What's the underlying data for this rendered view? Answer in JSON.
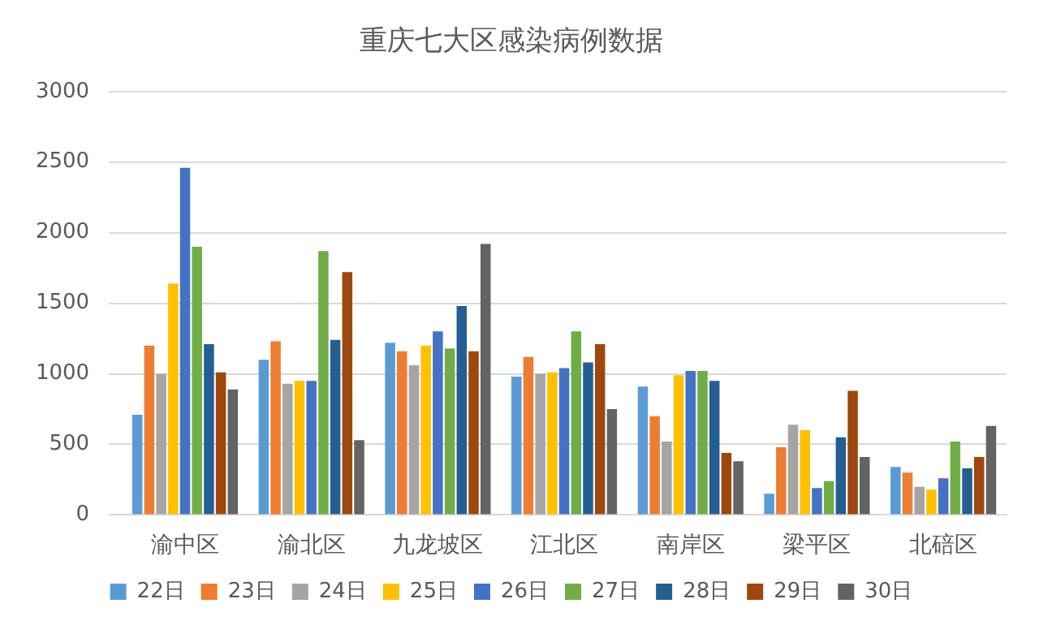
{
  "chart_data": {
    "type": "bar",
    "title": "重庆七大区感染病例数据",
    "categories": [
      "渝中区",
      "渝北区",
      "九龙坡区",
      "江北区",
      "南岸区",
      "梁平区",
      "北碚区"
    ],
    "series": [
      {
        "name": "22日",
        "color": "#5b9bd5",
        "values": [
          710,
          1100,
          1220,
          980,
          910,
          150,
          340
        ]
      },
      {
        "name": "23日",
        "color": "#ed7d31",
        "values": [
          1200,
          1230,
          1160,
          1120,
          700,
          480,
          300
        ]
      },
      {
        "name": "24日",
        "color": "#a5a5a5",
        "values": [
          1000,
          930,
          1060,
          1000,
          520,
          640,
          200
        ]
      },
      {
        "name": "25日",
        "color": "#ffc000",
        "values": [
          1640,
          950,
          1200,
          1010,
          990,
          600,
          180
        ]
      },
      {
        "name": "26日",
        "color": "#4472c4",
        "values": [
          2460,
          950,
          1300,
          1040,
          1020,
          190,
          260
        ]
      },
      {
        "name": "27日",
        "color": "#70ad47",
        "values": [
          1900,
          1870,
          1180,
          1300,
          1020,
          240,
          520
        ]
      },
      {
        "name": "28日",
        "color": "#255e91",
        "values": [
          1210,
          1240,
          1480,
          1080,
          950,
          550,
          330
        ]
      },
      {
        "name": "29日",
        "color": "#9e480e",
        "values": [
          1010,
          1720,
          1160,
          1210,
          440,
          880,
          410
        ]
      },
      {
        "name": "30日",
        "color": "#636363",
        "values": [
          890,
          530,
          1920,
          750,
          380,
          410,
          630
        ]
      }
    ],
    "ylim": [
      0,
      3000
    ],
    "yticks": [
      0,
      500,
      1000,
      1500,
      2000,
      2500,
      3000
    ],
    "grid": "y",
    "legend": "bottom"
  }
}
